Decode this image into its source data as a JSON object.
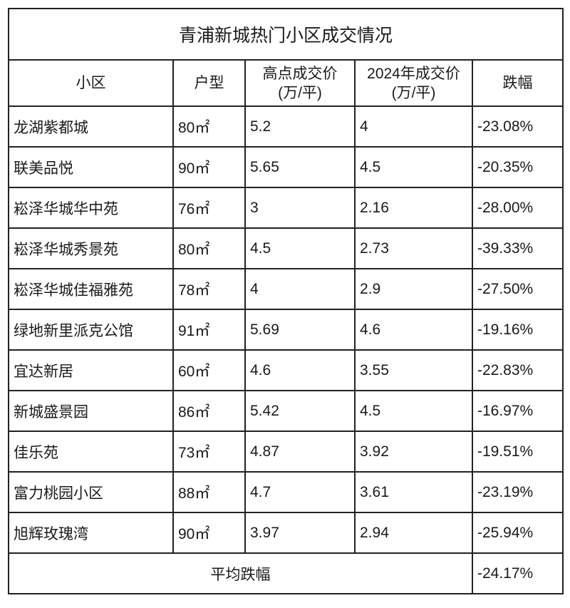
{
  "title": "青浦新城热门小区成交情况",
  "headers": [
    "小区",
    "户型",
    "高点成交价\n(万/平)",
    "2024年成交价\n(万/平)",
    "跌幅"
  ],
  "rows": [
    [
      "龙湖紫都城",
      "80㎡",
      "5.2",
      "4",
      "-23.08%"
    ],
    [
      "联美品悦",
      "90㎡",
      "5.65",
      "4.5",
      "-20.35%"
    ],
    [
      "崧泽华城华中苑",
      "76㎡",
      "3",
      "2.16",
      "-28.00%"
    ],
    [
      "崧泽华城秀景苑",
      "80㎡",
      "4.5",
      "2.73",
      "-39.33%"
    ],
    [
      "崧泽华城佳福雅苑",
      "78㎡",
      "4",
      "2.9",
      "-27.50%"
    ],
    [
      "绿地新里派克公馆",
      "91㎡",
      "5.69",
      "4.6",
      "-19.16%"
    ],
    [
      "宜达新居",
      "60㎡",
      "4.6",
      "3.55",
      "-22.83%"
    ],
    [
      "新城盛景园",
      "86㎡",
      "5.42",
      "4.5",
      "-16.97%"
    ],
    [
      "佳乐苑",
      "73㎡",
      "4.87",
      "3.92",
      "-19.51%"
    ],
    [
      "富力桃园小区",
      "88㎡",
      "4.7",
      "3.61",
      "-23.19%"
    ],
    [
      "旭辉玫瑰湾",
      "90㎡",
      "3.97",
      "2.94",
      "-25.94%"
    ]
  ],
  "average": {
    "label": "平均跌幅",
    "value": "-24.17%"
  }
}
